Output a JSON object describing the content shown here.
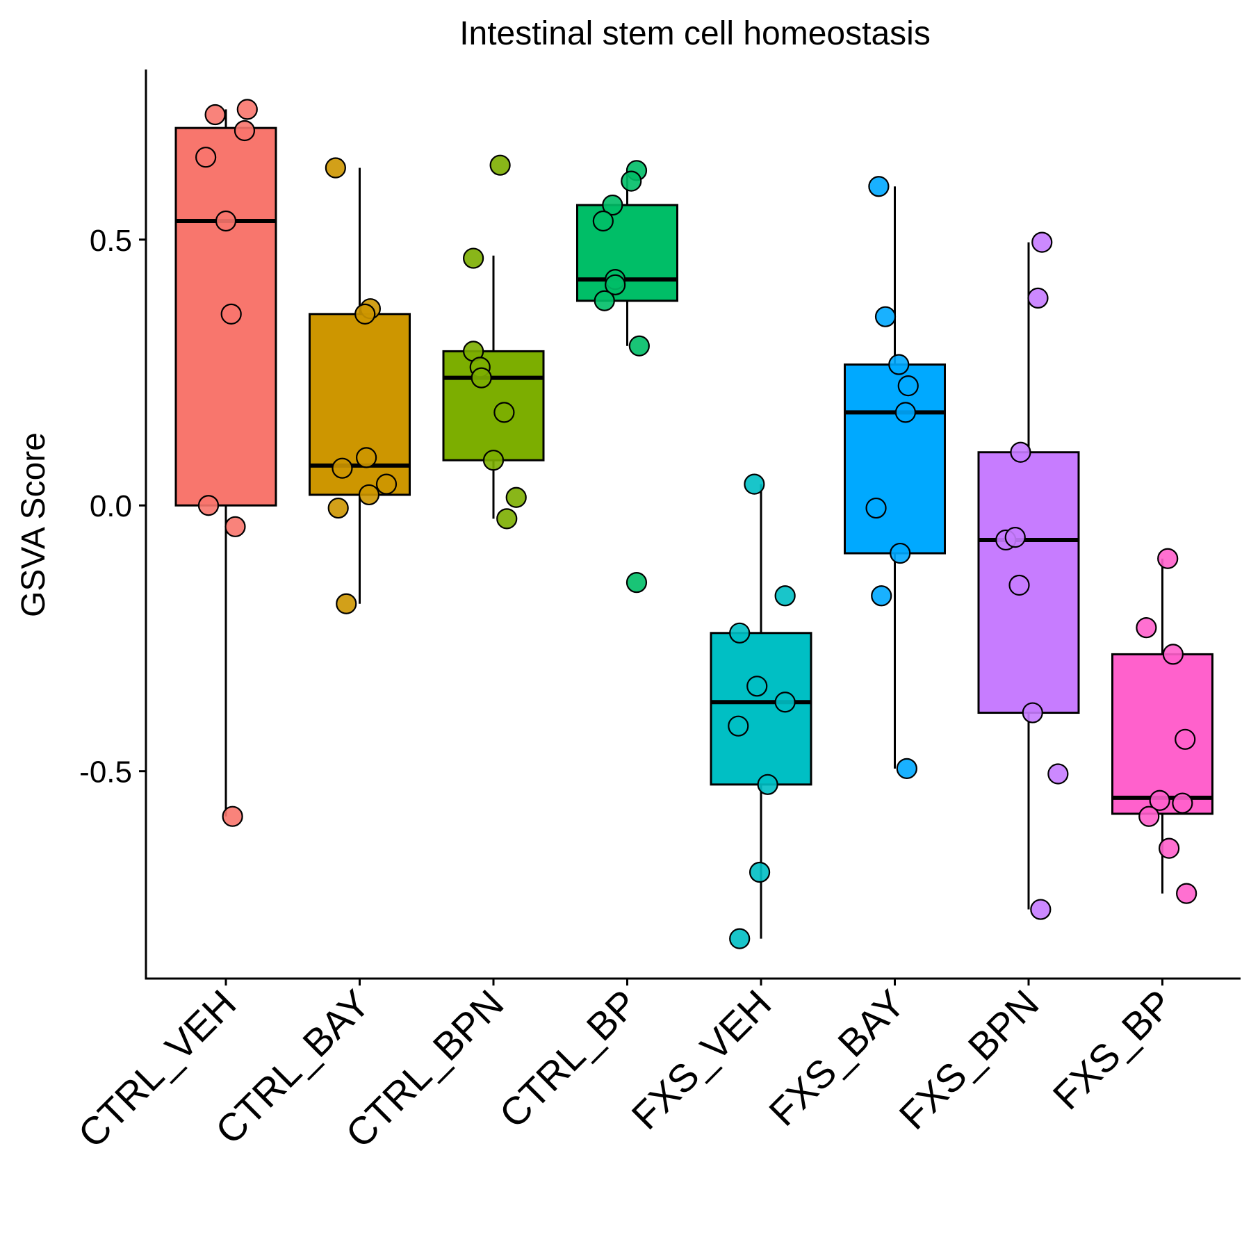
{
  "chart_data": {
    "type": "box",
    "title": "Intestinal stem cell homeostasis",
    "xlabel": "",
    "ylabel": "GSVA Score",
    "ylim": [
      -0.89,
      0.82
    ],
    "yticks": [
      -0.5,
      0.0,
      0.5
    ],
    "ytick_labels": [
      "-0.5",
      "0.0",
      "0.5"
    ],
    "grid": false,
    "legend": "none",
    "categories": [
      "CTRL_VEH",
      "CTRL_BAY",
      "CTRL_BPN",
      "CTRL_BP",
      "FXS_VEH",
      "FXS_BAY",
      "FXS_BPN",
      "FXS_BP"
    ],
    "colors": [
      "#F8766D",
      "#CD9600",
      "#7CAE00",
      "#00BE67",
      "#00BFC4",
      "#00A9FF",
      "#C77CFF",
      "#FF61CC"
    ],
    "boxes": [
      {
        "group": "CTRL_VEH",
        "q1": 0.0,
        "median": 0.535,
        "q3": 0.71,
        "whisker_low": -0.585,
        "whisker_high": 0.745
      },
      {
        "group": "CTRL_BAY",
        "q1": 0.02,
        "median": 0.075,
        "q3": 0.36,
        "whisker_low": -0.185,
        "whisker_high": 0.635
      },
      {
        "group": "CTRL_BPN",
        "q1": 0.085,
        "median": 0.24,
        "q3": 0.29,
        "whisker_low": -0.025,
        "whisker_high": 0.47
      },
      {
        "group": "CTRL_BP",
        "q1": 0.385,
        "median": 0.425,
        "q3": 0.565,
        "whisker_low": 0.3,
        "whisker_high": 0.63
      },
      {
        "group": "FXS_VEH",
        "q1": -0.525,
        "median": -0.37,
        "q3": -0.24,
        "whisker_low": -0.815,
        "whisker_high": 0.04
      },
      {
        "group": "FXS_BAY",
        "q1": -0.09,
        "median": 0.175,
        "q3": 0.265,
        "whisker_low": -0.495,
        "whisker_high": 0.6
      },
      {
        "group": "FXS_BPN",
        "q1": -0.39,
        "median": -0.065,
        "q3": 0.1,
        "whisker_low": -0.76,
        "whisker_high": 0.495
      },
      {
        "group": "FXS_BP",
        "q1": -0.58,
        "median": -0.55,
        "q3": -0.28,
        "whisker_low": -0.73,
        "whisker_high": -0.1
      }
    ],
    "points": [
      [
        {
          "x": -0.08,
          "y": 0.735
        },
        {
          "x": 0.16,
          "y": 0.745
        },
        {
          "x": 0.14,
          "y": 0.705
        },
        {
          "x": -0.15,
          "y": 0.655
        },
        {
          "x": 0.0,
          "y": 0.535
        },
        {
          "x": 0.04,
          "y": 0.36
        },
        {
          "x": -0.13,
          "y": 0.0
        },
        {
          "x": 0.07,
          "y": -0.04
        },
        {
          "x": 0.05,
          "y": -0.585
        }
      ],
      [
        {
          "x": -0.18,
          "y": 0.635
        },
        {
          "x": 0.08,
          "y": 0.37
        },
        {
          "x": 0.04,
          "y": 0.36
        },
        {
          "x": 0.05,
          "y": 0.09
        },
        {
          "x": -0.13,
          "y": 0.07
        },
        {
          "x": 0.2,
          "y": 0.04
        },
        {
          "x": 0.07,
          "y": 0.02
        },
        {
          "x": -0.16,
          "y": -0.005
        },
        {
          "x": -0.1,
          "y": -0.185
        }
      ],
      [
        {
          "x": 0.05,
          "y": 0.64
        },
        {
          "x": -0.15,
          "y": 0.465
        },
        {
          "x": -0.15,
          "y": 0.29
        },
        {
          "x": -0.1,
          "y": 0.26
        },
        {
          "x": -0.09,
          "y": 0.24
        },
        {
          "x": 0.08,
          "y": 0.175
        },
        {
          "x": 0.0,
          "y": 0.085
        },
        {
          "x": 0.17,
          "y": 0.015
        },
        {
          "x": 0.1,
          "y": -0.025
        }
      ],
      [
        {
          "x": 0.07,
          "y": 0.63
        },
        {
          "x": 0.03,
          "y": 0.61
        },
        {
          "x": -0.11,
          "y": 0.565
        },
        {
          "x": -0.18,
          "y": 0.535
        },
        {
          "x": -0.09,
          "y": 0.425
        },
        {
          "x": -0.09,
          "y": 0.415
        },
        {
          "x": -0.17,
          "y": 0.385
        },
        {
          "x": 0.09,
          "y": 0.3
        },
        {
          "x": 0.07,
          "y": -0.145
        }
      ],
      [
        {
          "x": -0.05,
          "y": 0.04
        },
        {
          "x": 0.18,
          "y": -0.17
        },
        {
          "x": -0.16,
          "y": -0.24
        },
        {
          "x": -0.03,
          "y": -0.34
        },
        {
          "x": 0.18,
          "y": -0.37
        },
        {
          "x": -0.17,
          "y": -0.415
        },
        {
          "x": 0.05,
          "y": -0.525
        },
        {
          "x": -0.01,
          "y": -0.69
        },
        {
          "x": -0.16,
          "y": -0.815
        }
      ],
      [
        {
          "x": -0.12,
          "y": 0.6
        },
        {
          "x": -0.07,
          "y": 0.355
        },
        {
          "x": 0.03,
          "y": 0.265
        },
        {
          "x": 0.1,
          "y": 0.225
        },
        {
          "x": 0.08,
          "y": 0.175
        },
        {
          "x": -0.14,
          "y": -0.005
        },
        {
          "x": 0.04,
          "y": -0.09
        },
        {
          "x": -0.1,
          "y": -0.17
        },
        {
          "x": 0.09,
          "y": -0.495
        }
      ],
      [
        {
          "x": 0.1,
          "y": 0.495
        },
        {
          "x": 0.07,
          "y": 0.39
        },
        {
          "x": -0.06,
          "y": 0.1
        },
        {
          "x": -0.17,
          "y": -0.065
        },
        {
          "x": -0.1,
          "y": -0.06
        },
        {
          "x": -0.07,
          "y": -0.15
        },
        {
          "x": 0.03,
          "y": -0.39
        },
        {
          "x": 0.22,
          "y": -0.505
        },
        {
          "x": 0.09,
          "y": -0.76
        }
      ],
      [
        {
          "x": 0.04,
          "y": -0.1
        },
        {
          "x": -0.12,
          "y": -0.23
        },
        {
          "x": 0.08,
          "y": -0.28
        },
        {
          "x": 0.17,
          "y": -0.44
        },
        {
          "x": -0.02,
          "y": -0.555
        },
        {
          "x": 0.15,
          "y": -0.56
        },
        {
          "x": -0.1,
          "y": -0.585
        },
        {
          "x": 0.05,
          "y": -0.645
        },
        {
          "x": 0.18,
          "y": -0.73
        }
      ]
    ]
  }
}
